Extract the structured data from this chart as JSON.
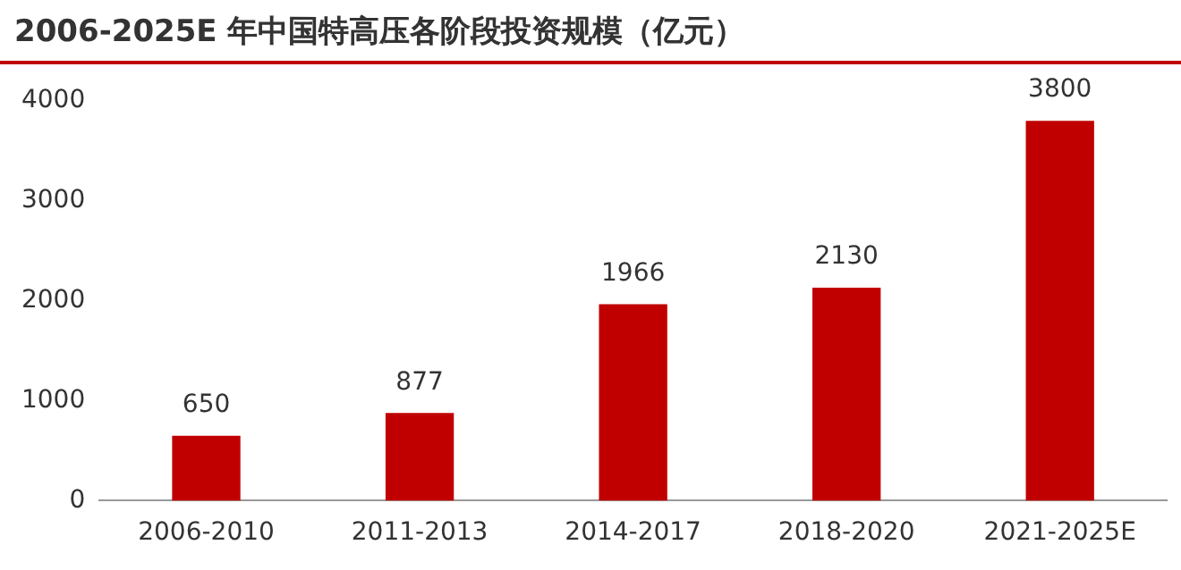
{
  "chart_data": {
    "type": "bar",
    "title": "2006-2025E 年中国特高压各阶段投资规模（亿元）",
    "categories": [
      "2006-2010",
      "2011-2013",
      "2014-2017",
      "2018-2020",
      "2021-2025E"
    ],
    "values": [
      650,
      877,
      1966,
      2130,
      3800
    ],
    "color": "#c00000",
    "ylim": [
      0,
      4000
    ],
    "yticks": [
      0,
      1000,
      2000,
      3000,
      4000
    ],
    "grid": false,
    "legend": false,
    "data_labels": true
  }
}
